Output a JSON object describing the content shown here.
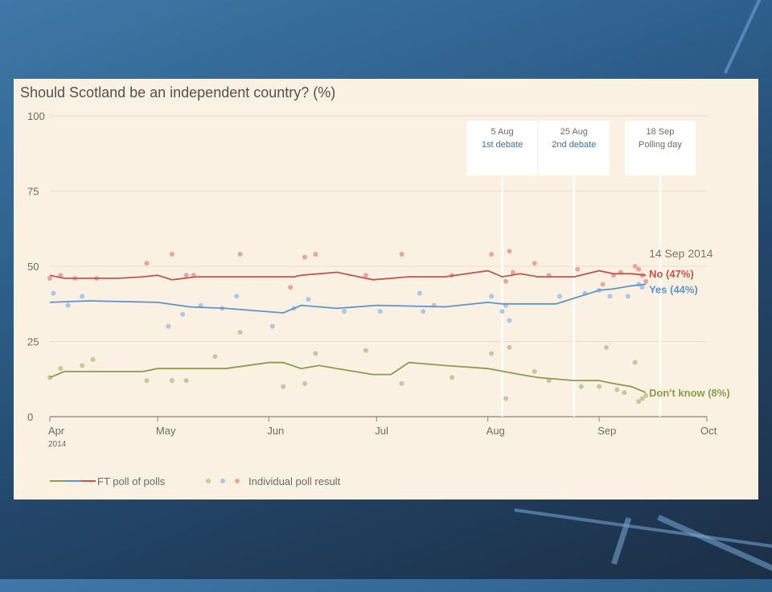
{
  "chart_data": {
    "type": "line",
    "title": "Should Scotland be an independent country? (%)",
    "y_ticks": [
      "100",
      "75",
      "50",
      "25",
      "0"
    ],
    "ylim": [
      0,
      100
    ],
    "x_ticks": [
      "Apr",
      "May",
      "Jun",
      "Jul",
      "Aug",
      "Sep",
      "Oct"
    ],
    "x_tick_dates": [
      "2014-04-01",
      "2014-05-01",
      "2014-06-01",
      "2014-07-01",
      "2014-08-01",
      "2014-09-01",
      "2014-10-01"
    ],
    "x_year_label": "2014",
    "xlim": [
      "2014-04-01",
      "2014-10-01"
    ],
    "grid": true,
    "events": [
      {
        "date": "2014-08-05",
        "date_label": "5 Aug",
        "label": "1st debate"
      },
      {
        "date": "2014-08-25",
        "date_label": "25 Aug",
        "label": "2nd debate"
      },
      {
        "date": "2014-09-18",
        "date_label": "18 Sep",
        "label": "Polling day"
      }
    ],
    "focus_date": "14 Sep 2014",
    "series": [
      {
        "name": "No",
        "end_label": "No (47%)",
        "color": "#c0564f",
        "points_color": "#e6a5a0",
        "x": [
          "2014-04-01",
          "2014-04-05",
          "2014-04-12",
          "2014-04-20",
          "2014-04-27",
          "2014-05-01",
          "2014-05-05",
          "2014-05-12",
          "2014-05-20",
          "2014-06-05",
          "2014-06-08",
          "2014-06-10",
          "2014-06-15",
          "2014-06-20",
          "2014-06-30",
          "2014-07-10",
          "2014-07-20",
          "2014-08-01",
          "2014-08-05",
          "2014-08-10",
          "2014-08-15",
          "2014-08-25",
          "2014-09-01",
          "2014-09-05",
          "2014-09-10",
          "2014-09-14"
        ],
        "values": [
          47,
          46,
          46,
          46,
          46.5,
          47,
          45.5,
          46.5,
          46.5,
          46.5,
          46.5,
          47,
          47.5,
          48,
          45.5,
          46.5,
          46.5,
          48.5,
          46.5,
          47.5,
          46.5,
          46.5,
          48.5,
          47.5,
          47.5,
          47
        ],
        "polls_x": [
          "2014-04-01",
          "2014-04-04",
          "2014-04-08",
          "2014-04-14",
          "2014-04-28",
          "2014-05-05",
          "2014-05-09",
          "2014-05-11",
          "2014-05-24",
          "2014-06-07",
          "2014-06-11",
          "2014-06-14",
          "2014-06-28",
          "2014-07-08",
          "2014-07-22",
          "2014-08-02",
          "2014-08-06",
          "2014-08-07",
          "2014-08-08",
          "2014-08-14",
          "2014-08-18",
          "2014-08-26",
          "2014-09-02",
          "2014-09-05",
          "2014-09-07",
          "2014-09-11",
          "2014-09-12",
          "2014-09-13",
          "2014-09-14"
        ],
        "polls": [
          46,
          47,
          46,
          46,
          51,
          54,
          47,
          47,
          54,
          43,
          53,
          54,
          47,
          54,
          47,
          54,
          45,
          55,
          48,
          51,
          47,
          49,
          44,
          47,
          48,
          50,
          49,
          47,
          45
        ]
      },
      {
        "name": "Yes",
        "end_label": "Yes (44%)",
        "color": "#5f93cf",
        "points_color": "#a9c8e6",
        "x": [
          "2014-04-01",
          "2014-04-12",
          "2014-05-01",
          "2014-05-10",
          "2014-05-20",
          "2014-06-05",
          "2014-06-10",
          "2014-06-20",
          "2014-07-01",
          "2014-07-20",
          "2014-08-01",
          "2014-08-05",
          "2014-08-10",
          "2014-08-20",
          "2014-09-01",
          "2014-09-05",
          "2014-09-10",
          "2014-09-14"
        ],
        "values": [
          38,
          38.5,
          38,
          36.5,
          36,
          34.5,
          37,
          36,
          37,
          36.5,
          38,
          37.5,
          37.5,
          37.5,
          42,
          42.5,
          43.5,
          44
        ],
        "polls_x": [
          "2014-04-02",
          "2014-04-06",
          "2014-04-10",
          "2014-05-04",
          "2014-05-08",
          "2014-05-13",
          "2014-05-19",
          "2014-05-23",
          "2014-06-02",
          "2014-06-08",
          "2014-06-12",
          "2014-06-22",
          "2014-07-02",
          "2014-07-13",
          "2014-07-14",
          "2014-07-17",
          "2014-08-02",
          "2014-08-05",
          "2014-08-06",
          "2014-08-07",
          "2014-08-21",
          "2014-08-28",
          "2014-09-01",
          "2014-09-04",
          "2014-09-09",
          "2014-09-12",
          "2014-09-13"
        ],
        "polls": [
          41,
          37,
          40,
          30,
          34,
          37,
          36,
          40,
          30,
          36,
          39,
          35,
          35,
          41,
          35,
          37,
          40,
          35,
          37,
          32,
          40,
          41,
          42,
          40,
          40,
          44,
          43
        ]
      },
      {
        "name": "Don't know",
        "end_label": "Don't know (8%)",
        "color": "#8e9a4e",
        "points_color": "#c3c999",
        "x": [
          "2014-04-01",
          "2014-04-05",
          "2014-04-12",
          "2014-04-27",
          "2014-05-01",
          "2014-05-10",
          "2014-05-20",
          "2014-06-01",
          "2014-06-05",
          "2014-06-10",
          "2014-06-15",
          "2014-06-20",
          "2014-06-30",
          "2014-07-05",
          "2014-07-10",
          "2014-07-20",
          "2014-08-01",
          "2014-08-10",
          "2014-08-15",
          "2014-08-25",
          "2014-09-01",
          "2014-09-05",
          "2014-09-10",
          "2014-09-14"
        ],
        "values": [
          13,
          15,
          15,
          15,
          16,
          16,
          16,
          18,
          18,
          16,
          17,
          16,
          14,
          14,
          18,
          17,
          16,
          14,
          13,
          12,
          12,
          11,
          10,
          8
        ],
        "polls_x": [
          "2014-04-01",
          "2014-04-04",
          "2014-04-10",
          "2014-04-13",
          "2014-04-28",
          "2014-05-05",
          "2014-05-09",
          "2014-05-17",
          "2014-05-24",
          "2014-06-05",
          "2014-06-11",
          "2014-06-14",
          "2014-06-28",
          "2014-07-08",
          "2014-07-22",
          "2014-08-02",
          "2014-08-06",
          "2014-08-07",
          "2014-08-14",
          "2014-08-18",
          "2014-08-27",
          "2014-09-01",
          "2014-09-03",
          "2014-09-06",
          "2014-09-08",
          "2014-09-11",
          "2014-09-12",
          "2014-09-13",
          "2014-09-14"
        ],
        "polls": [
          13,
          16,
          17,
          19,
          12,
          12,
          12,
          20,
          28,
          10,
          11,
          21,
          22,
          11,
          13,
          21,
          6,
          23,
          15,
          12,
          10,
          10,
          23,
          9,
          8,
          18,
          5,
          6,
          7
        ]
      }
    ],
    "legend": {
      "line_label": "FT poll of polls",
      "points_label": "Individual poll result",
      "placement": "bottom-left"
    }
  }
}
